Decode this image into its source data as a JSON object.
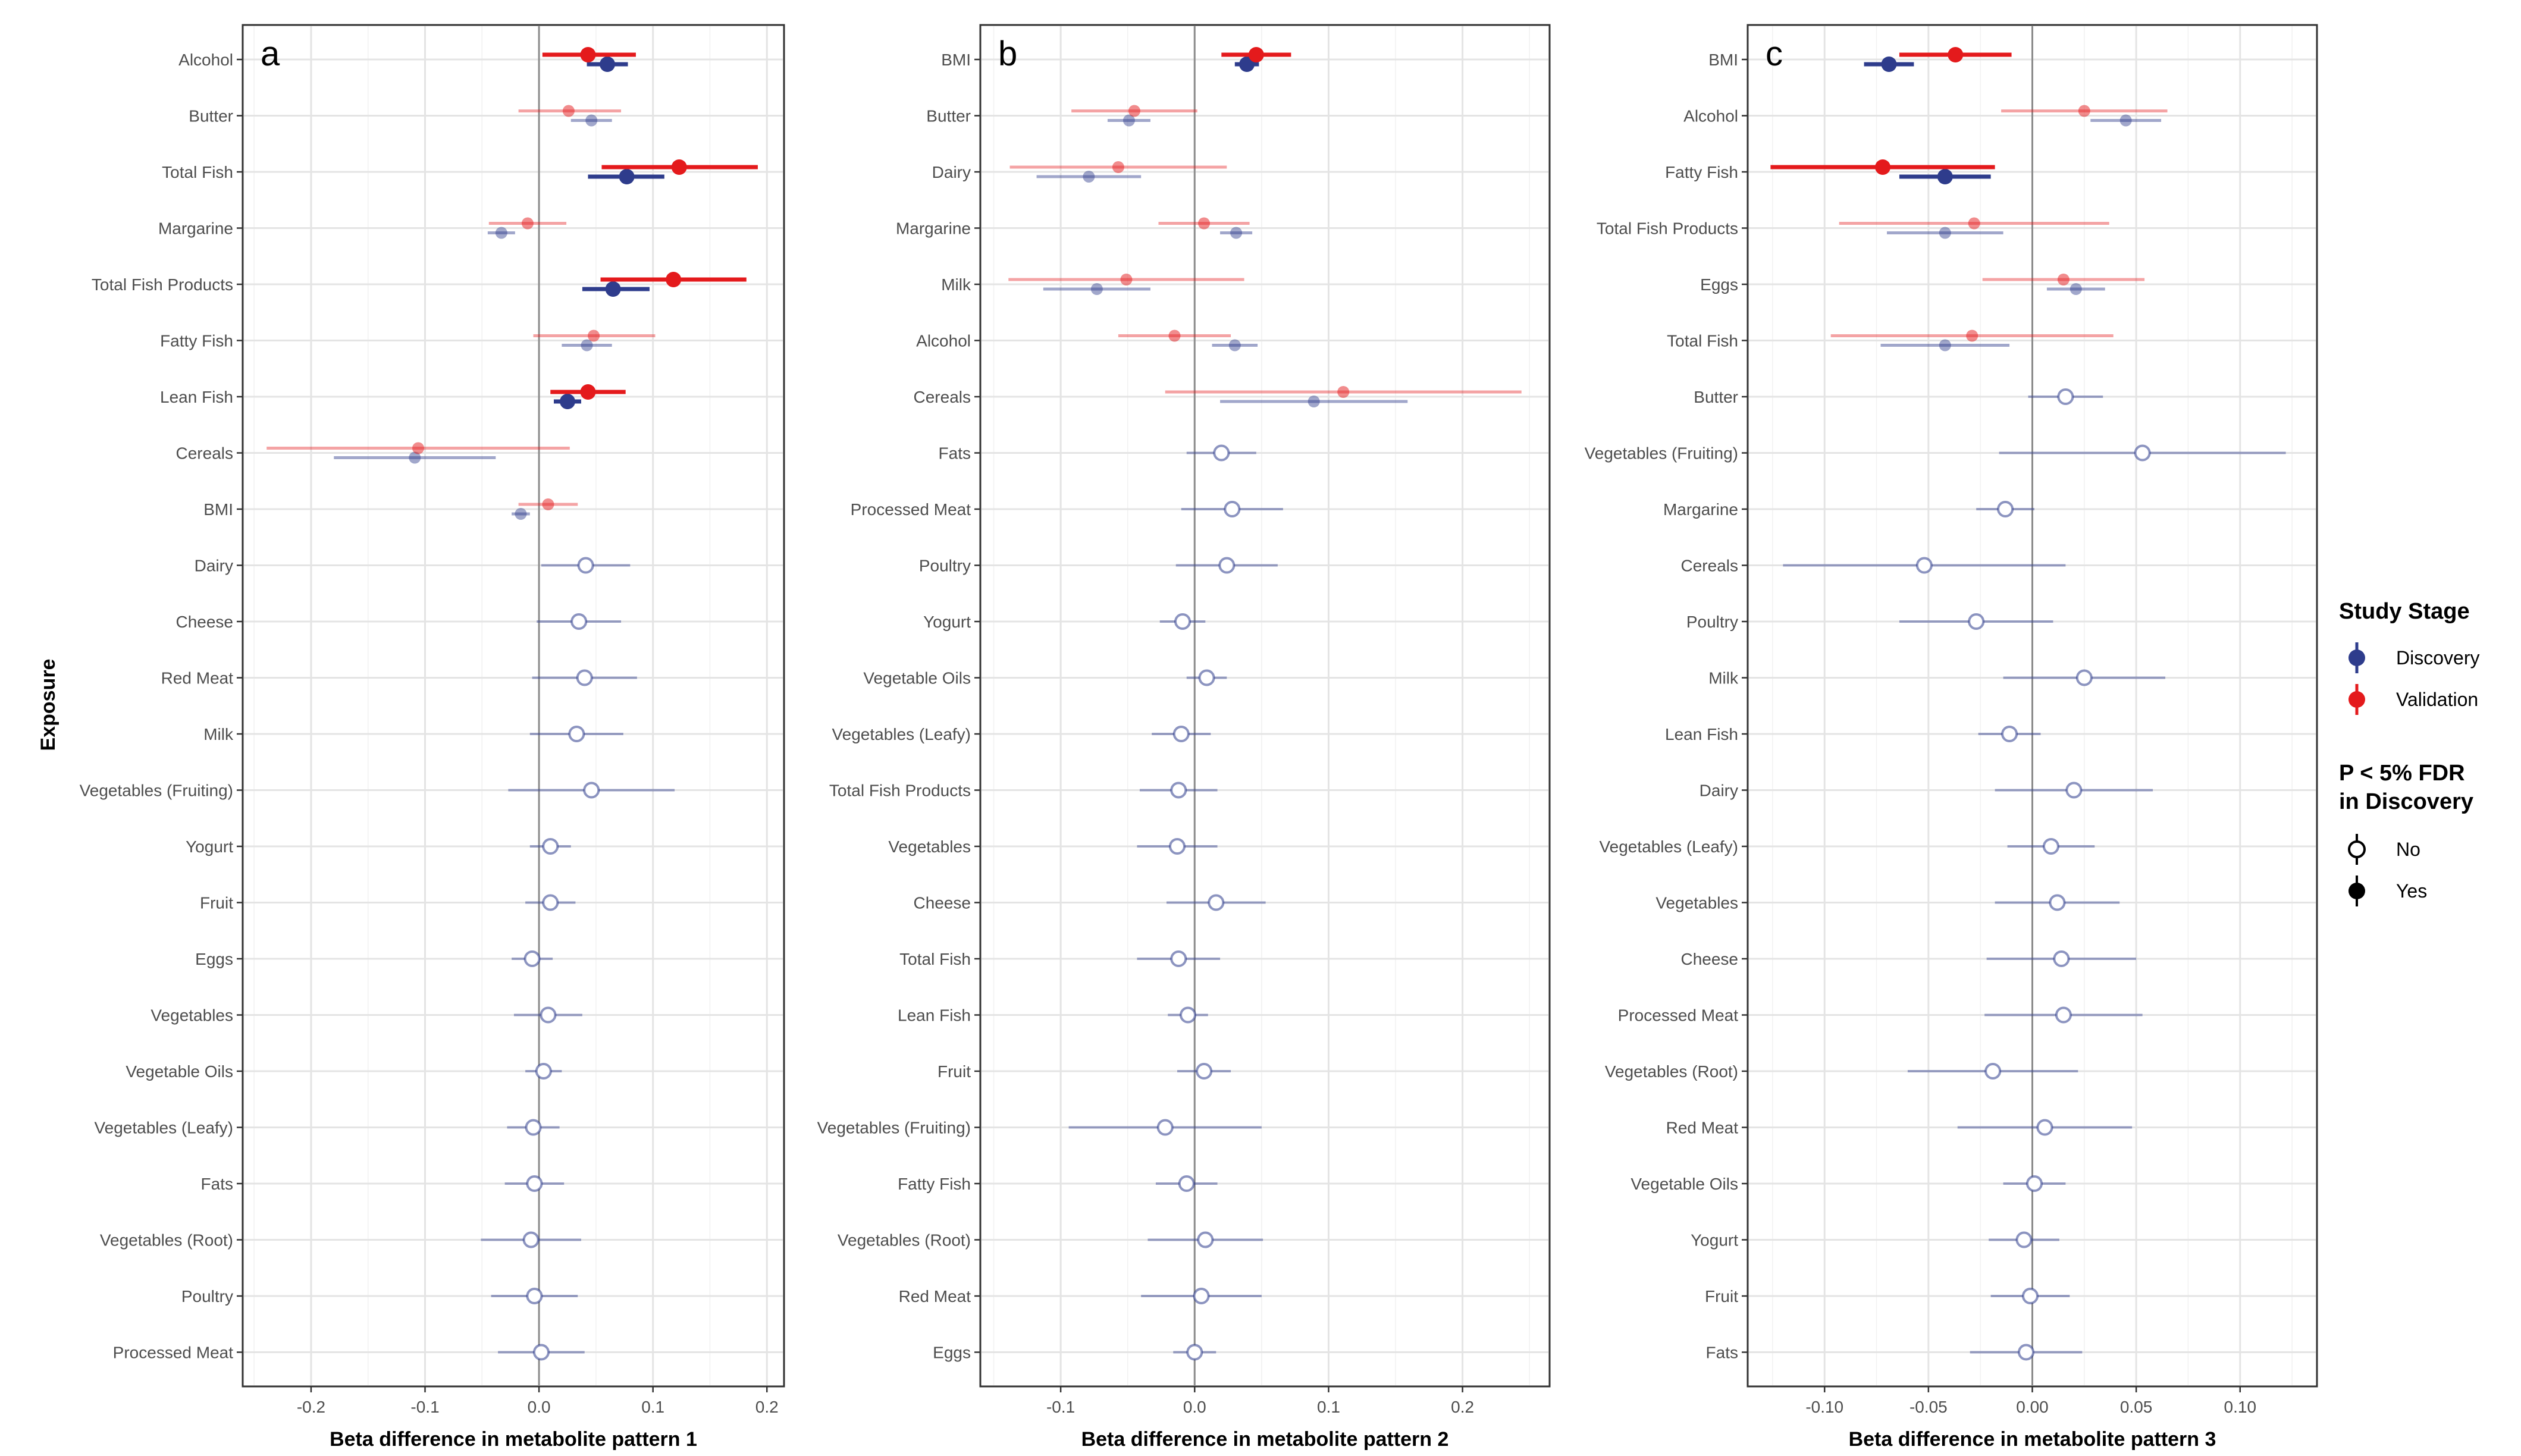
{
  "y_axis_label": "Exposure",
  "legend": {
    "stage_title": "Study Stage",
    "stage_items": [
      {
        "label": "Discovery",
        "color": "#2e3c8c"
      },
      {
        "label": "Validation",
        "color": "#e41a1c"
      }
    ],
    "sig_title_line1": "P < 5% FDR",
    "sig_title_line2": "in Discovery",
    "sig_items": [
      {
        "label": "No",
        "filled": false
      },
      {
        "label": "Yes",
        "filled": true
      }
    ]
  },
  "chart_data": [
    {
      "type": "forest",
      "tag": "a",
      "xlabel": "Beta difference in metabolite pattern 1",
      "xlim": [
        -0.26,
        0.215
      ],
      "xticks": [
        -0.2,
        -0.1,
        0.0,
        0.1,
        0.2
      ],
      "xtick_labels": [
        "-0.2",
        "-0.1",
        "0.0",
        "0.1",
        "0.2"
      ],
      "rows": [
        {
          "label": "Alcohol",
          "sig": true,
          "disc": [
            0.06,
            0.042,
            0.078
          ],
          "val": [
            0.043,
            0.003,
            0.085
          ]
        },
        {
          "label": "Butter",
          "sig": false,
          "disc": [
            0.046,
            0.028,
            0.064
          ],
          "val": [
            0.026,
            -0.018,
            0.072
          ]
        },
        {
          "label": "Total Fish",
          "sig": true,
          "disc": [
            0.077,
            0.043,
            0.11
          ],
          "val": [
            0.123,
            0.055,
            0.192
          ]
        },
        {
          "label": "Margarine",
          "sig": false,
          "disc": [
            -0.033,
            -0.045,
            -0.021
          ],
          "val": [
            -0.01,
            -0.044,
            0.024
          ]
        },
        {
          "label": "Total Fish Products",
          "sig": true,
          "disc": [
            0.065,
            0.038,
            0.097
          ],
          "val": [
            0.118,
            0.054,
            0.182
          ]
        },
        {
          "label": "Fatty Fish",
          "sig": false,
          "disc": [
            0.042,
            0.02,
            0.064
          ],
          "val": [
            0.048,
            -0.005,
            0.102
          ]
        },
        {
          "label": "Lean Fish",
          "sig": true,
          "disc": [
            0.025,
            0.013,
            0.037
          ],
          "val": [
            0.043,
            0.01,
            0.076
          ]
        },
        {
          "label": "Cereals",
          "sig": false,
          "disc": [
            -0.109,
            -0.18,
            -0.038
          ],
          "val": [
            -0.106,
            -0.239,
            0.027
          ]
        },
        {
          "label": "BMI",
          "sig": false,
          "disc": [
            -0.016,
            -0.024,
            -0.008
          ],
          "val": [
            0.008,
            -0.018,
            0.034
          ]
        },
        {
          "label": "Dairy",
          "sig": false,
          "disc": [
            0.041,
            0.002,
            0.08
          ]
        },
        {
          "label": "Cheese",
          "sig": false,
          "disc": [
            0.035,
            -0.002,
            0.072
          ]
        },
        {
          "label": "Red Meat",
          "sig": false,
          "disc": [
            0.04,
            -0.006,
            0.086
          ]
        },
        {
          "label": "Milk",
          "sig": false,
          "disc": [
            0.033,
            -0.008,
            0.074
          ]
        },
        {
          "label": "Vegetables (Fruiting)",
          "sig": false,
          "disc": [
            0.046,
            -0.027,
            0.119
          ]
        },
        {
          "label": "Yogurt",
          "sig": false,
          "disc": [
            0.01,
            -0.008,
            0.028
          ]
        },
        {
          "label": "Fruit",
          "sig": false,
          "disc": [
            0.01,
            -0.012,
            0.032
          ]
        },
        {
          "label": "Eggs",
          "sig": false,
          "disc": [
            -0.006,
            -0.024,
            0.012
          ]
        },
        {
          "label": "Vegetables",
          "sig": false,
          "disc": [
            0.008,
            -0.022,
            0.038
          ]
        },
        {
          "label": "Vegetable Oils",
          "sig": false,
          "disc": [
            0.004,
            -0.012,
            0.02
          ]
        },
        {
          "label": "Vegetables (Leafy)",
          "sig": false,
          "disc": [
            -0.005,
            -0.028,
            0.018
          ]
        },
        {
          "label": "Fats",
          "sig": false,
          "disc": [
            -0.004,
            -0.03,
            0.022
          ]
        },
        {
          "label": "Vegetables (Root)",
          "sig": false,
          "disc": [
            -0.007,
            -0.051,
            0.037
          ]
        },
        {
          "label": "Poultry",
          "sig": false,
          "disc": [
            -0.004,
            -0.042,
            0.034
          ]
        },
        {
          "label": "Processed Meat",
          "sig": false,
          "disc": [
            0.002,
            -0.036,
            0.04
          ]
        }
      ]
    },
    {
      "type": "forest",
      "tag": "b",
      "xlabel": "Beta difference in metabolite pattern 2",
      "xlim": [
        -0.16,
        0.265
      ],
      "xticks": [
        -0.1,
        0.0,
        0.1,
        0.2
      ],
      "xtick_labels": [
        "-0.1",
        "0.0",
        "0.1",
        "0.2"
      ],
      "rows": [
        {
          "label": "BMI",
          "sig": true,
          "disc": [
            0.039,
            0.03,
            0.048
          ],
          "val": [
            0.046,
            0.02,
            0.072
          ]
        },
        {
          "label": "Butter",
          "sig": false,
          "disc": [
            -0.049,
            -0.065,
            -0.033
          ],
          "val": [
            -0.045,
            -0.092,
            0.002
          ]
        },
        {
          "label": "Dairy",
          "sig": false,
          "disc": [
            -0.079,
            -0.118,
            -0.04
          ],
          "val": [
            -0.057,
            -0.138,
            0.024
          ]
        },
        {
          "label": "Margarine",
          "sig": false,
          "disc": [
            0.031,
            0.019,
            0.043
          ],
          "val": [
            0.007,
            -0.027,
            0.041
          ]
        },
        {
          "label": "Milk",
          "sig": false,
          "disc": [
            -0.073,
            -0.113,
            -0.033
          ],
          "val": [
            -0.051,
            -0.139,
            0.037
          ]
        },
        {
          "label": "Alcohol",
          "sig": false,
          "disc": [
            0.03,
            0.013,
            0.047
          ],
          "val": [
            -0.015,
            -0.057,
            0.027
          ]
        },
        {
          "label": "Cereals",
          "sig": false,
          "disc": [
            0.089,
            0.019,
            0.159
          ],
          "val": [
            0.111,
            -0.022,
            0.244
          ]
        },
        {
          "label": "Fats",
          "sig": false,
          "disc": [
            0.02,
            -0.006,
            0.046
          ]
        },
        {
          "label": "Processed Meat",
          "sig": false,
          "disc": [
            0.028,
            -0.01,
            0.066
          ]
        },
        {
          "label": "Poultry",
          "sig": false,
          "disc": [
            0.024,
            -0.014,
            0.062
          ]
        },
        {
          "label": "Yogurt",
          "sig": false,
          "disc": [
            -0.009,
            -0.026,
            0.008
          ]
        },
        {
          "label": "Vegetable Oils",
          "sig": false,
          "disc": [
            0.009,
            -0.006,
            0.024
          ]
        },
        {
          "label": "Vegetables (Leafy)",
          "sig": false,
          "disc": [
            -0.01,
            -0.032,
            0.012
          ]
        },
        {
          "label": "Total Fish Products",
          "sig": false,
          "disc": [
            -0.012,
            -0.041,
            0.017
          ]
        },
        {
          "label": "Vegetables",
          "sig": false,
          "disc": [
            -0.013,
            -0.043,
            0.017
          ]
        },
        {
          "label": "Cheese",
          "sig": false,
          "disc": [
            0.016,
            -0.021,
            0.053
          ]
        },
        {
          "label": "Total Fish",
          "sig": false,
          "disc": [
            -0.012,
            -0.043,
            0.019
          ]
        },
        {
          "label": "Lean Fish",
          "sig": false,
          "disc": [
            -0.005,
            -0.02,
            0.01
          ]
        },
        {
          "label": "Fruit",
          "sig": false,
          "disc": [
            0.007,
            -0.013,
            0.027
          ]
        },
        {
          "label": "Vegetables (Fruiting)",
          "sig": false,
          "disc": [
            -0.022,
            -0.094,
            0.05
          ]
        },
        {
          "label": "Fatty Fish",
          "sig": false,
          "disc": [
            -0.006,
            -0.029,
            0.017
          ]
        },
        {
          "label": "Vegetables (Root)",
          "sig": false,
          "disc": [
            0.008,
            -0.035,
            0.051
          ]
        },
        {
          "label": "Red Meat",
          "sig": false,
          "disc": [
            0.005,
            -0.04,
            0.05
          ]
        },
        {
          "label": "Eggs",
          "sig": false,
          "disc": [
            0.0,
            -0.016,
            0.016
          ]
        }
      ]
    },
    {
      "type": "forest",
      "tag": "c",
      "xlabel": "Beta difference in metabolite pattern 3",
      "xlim": [
        -0.137,
        0.137
      ],
      "xticks": [
        -0.1,
        -0.05,
        0.0,
        0.05,
        0.1
      ],
      "xtick_labels": [
        "-0.10",
        "-0.05",
        "0.00",
        "0.05",
        "0.10"
      ],
      "rows": [
        {
          "label": "BMI",
          "sig": true,
          "disc": [
            -0.069,
            -0.081,
            -0.057
          ],
          "val": [
            -0.037,
            -0.064,
            -0.01
          ]
        },
        {
          "label": "Alcohol",
          "sig": false,
          "disc": [
            0.045,
            0.028,
            0.062
          ],
          "val": [
            0.025,
            -0.015,
            0.065
          ]
        },
        {
          "label": "Fatty Fish",
          "sig": true,
          "disc": [
            -0.042,
            -0.064,
            -0.02
          ],
          "val": [
            -0.072,
            -0.126,
            -0.018
          ]
        },
        {
          "label": "Total Fish Products",
          "sig": false,
          "disc": [
            -0.042,
            -0.07,
            -0.014
          ],
          "val": [
            -0.028,
            -0.093,
            0.037
          ]
        },
        {
          "label": "Eggs",
          "sig": false,
          "disc": [
            0.021,
            0.007,
            0.035
          ],
          "val": [
            0.015,
            -0.024,
            0.054
          ]
        },
        {
          "label": "Total Fish",
          "sig": false,
          "disc": [
            -0.042,
            -0.073,
            -0.011
          ],
          "val": [
            -0.029,
            -0.097,
            0.039
          ]
        },
        {
          "label": "Butter",
          "sig": false,
          "disc": [
            0.016,
            -0.002,
            0.034
          ]
        },
        {
          "label": "Vegetables (Fruiting)",
          "sig": false,
          "disc": [
            0.053,
            -0.016,
            0.122
          ]
        },
        {
          "label": "Margarine",
          "sig": false,
          "disc": [
            -0.013,
            -0.027,
            0.001
          ]
        },
        {
          "label": "Cereals",
          "sig": false,
          "disc": [
            -0.052,
            -0.12,
            0.016
          ]
        },
        {
          "label": "Poultry",
          "sig": false,
          "disc": [
            -0.027,
            -0.064,
            0.01
          ]
        },
        {
          "label": "Milk",
          "sig": false,
          "disc": [
            0.025,
            -0.014,
            0.064
          ]
        },
        {
          "label": "Lean Fish",
          "sig": false,
          "disc": [
            -0.011,
            -0.026,
            0.004
          ]
        },
        {
          "label": "Dairy",
          "sig": false,
          "disc": [
            0.02,
            -0.018,
            0.058
          ]
        },
        {
          "label": "Vegetables (Leafy)",
          "sig": false,
          "disc": [
            0.009,
            -0.012,
            0.03
          ]
        },
        {
          "label": "Vegetables",
          "sig": false,
          "disc": [
            0.012,
            -0.018,
            0.042
          ]
        },
        {
          "label": "Cheese",
          "sig": false,
          "disc": [
            0.014,
            -0.022,
            0.05
          ]
        },
        {
          "label": "Processed Meat",
          "sig": false,
          "disc": [
            0.015,
            -0.023,
            0.053
          ]
        },
        {
          "label": "Vegetables (Root)",
          "sig": false,
          "disc": [
            -0.019,
            -0.06,
            0.022
          ]
        },
        {
          "label": "Red Meat",
          "sig": false,
          "disc": [
            0.006,
            -0.036,
            0.048
          ]
        },
        {
          "label": "Vegetable Oils",
          "sig": false,
          "disc": [
            0.001,
            -0.014,
            0.016
          ]
        },
        {
          "label": "Yogurt",
          "sig": false,
          "disc": [
            -0.004,
            -0.021,
            0.013
          ]
        },
        {
          "label": "Fruit",
          "sig": false,
          "disc": [
            -0.001,
            -0.02,
            0.018
          ]
        },
        {
          "label": "Fats",
          "sig": false,
          "disc": [
            -0.003,
            -0.03,
            0.024
          ]
        }
      ]
    }
  ]
}
